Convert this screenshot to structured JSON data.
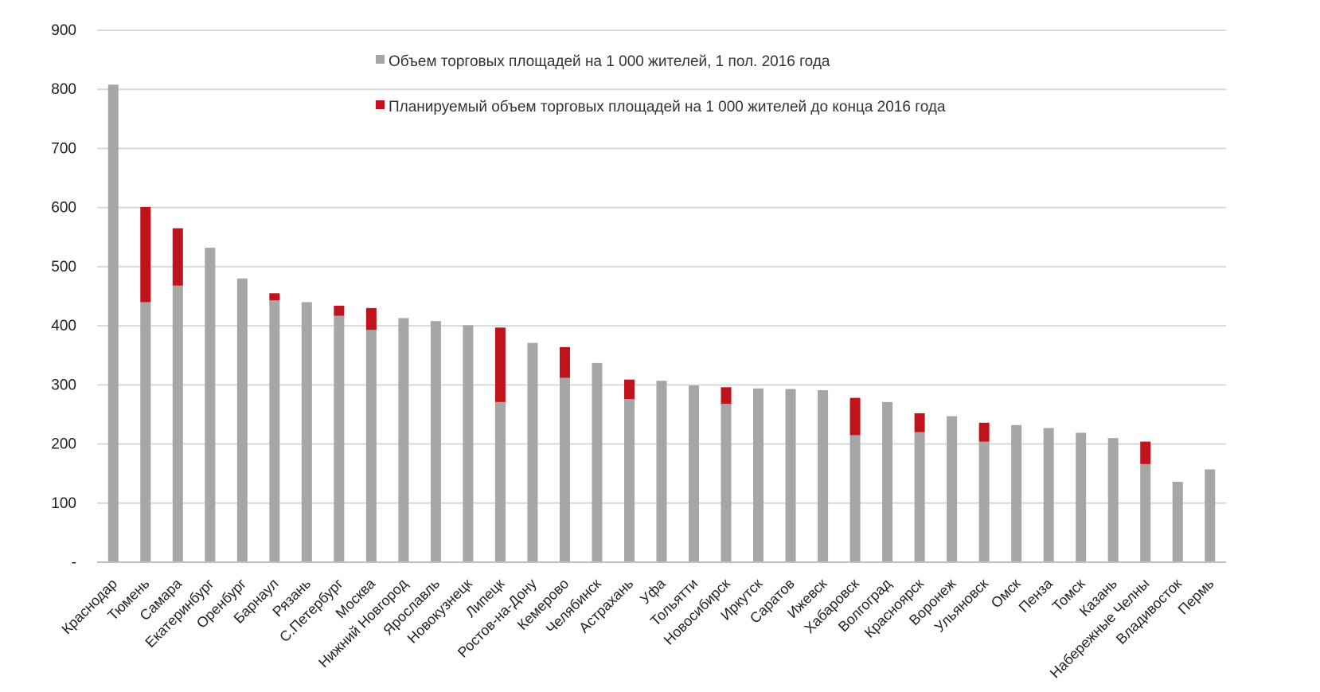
{
  "chart_data": {
    "type": "bar",
    "stacked": true,
    "title": "",
    "xlabel": "",
    "ylabel": "",
    "ylim": [
      0,
      900
    ],
    "grid": true,
    "legend_position": "top-center",
    "y_ticks": [
      {
        "value": 0,
        "label": "-"
      },
      {
        "value": 100,
        "label": "100"
      },
      {
        "value": 200,
        "label": "200"
      },
      {
        "value": 300,
        "label": "300"
      },
      {
        "value": 400,
        "label": "400"
      },
      {
        "value": 500,
        "label": "500"
      },
      {
        "value": 600,
        "label": "600"
      },
      {
        "value": 700,
        "label": "700"
      },
      {
        "value": 800,
        "label": "800"
      },
      {
        "value": 900,
        "label": "900"
      }
    ],
    "categories": [
      "Краснодар",
      "Тюмень",
      "Самара",
      "Екатеринбург",
      "Оренбург",
      "Барнаул",
      "Рязань",
      "С.Петербург",
      "Москва",
      "Нижний Новгород",
      "Ярославль",
      "Новокузнецк",
      "Липецк",
      "Ростов-на-Дону",
      "Кемерово",
      "Челябинск",
      "Астрахань",
      "Уфа",
      "Тольятти",
      "Новосибирск",
      "Иркутск",
      "Саратов",
      "Ижевск",
      "Хабаровск",
      "Волгоград",
      "Красноярск",
      "Воронеж",
      "Ульяновск",
      "Омск",
      "Пенза",
      "Томск",
      "Казань",
      "Набережные Челны",
      "Владивосток",
      "Пермь"
    ],
    "series": [
      {
        "name": "Объем торговых площадей на 1 000 жителей, 1 пол. 2016 года",
        "color": "#a6a6a6",
        "values": [
          808,
          440,
          468,
          532,
          480,
          443,
          440,
          417,
          393,
          413,
          408,
          401,
          271,
          371,
          312,
          337,
          276,
          307,
          299,
          268,
          294,
          293,
          291,
          215,
          271,
          220,
          247,
          204,
          232,
          227,
          219,
          210,
          166,
          136,
          157
        ]
      },
      {
        "name": "Планируемый объем торговых площадей на 1 000 жителей до конца 2016 года",
        "color": "#c0141c",
        "values": [
          0,
          161,
          97,
          0,
          0,
          12,
          0,
          17,
          37,
          0,
          0,
          0,
          126,
          0,
          52,
          0,
          33,
          0,
          0,
          28,
          0,
          0,
          0,
          63,
          0,
          32,
          0,
          32,
          0,
          0,
          0,
          0,
          38,
          0,
          0
        ]
      }
    ]
  }
}
